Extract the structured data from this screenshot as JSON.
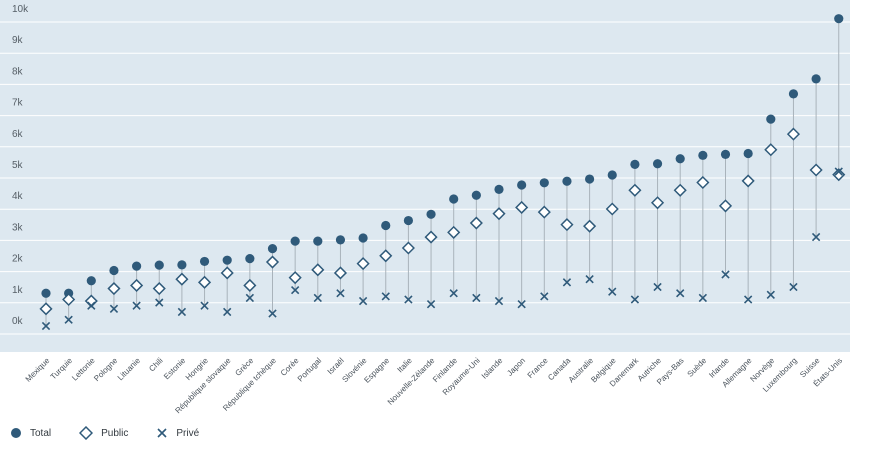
{
  "chart_data": {
    "type": "scatter",
    "ylim": [
      -900,
      10000
    ],
    "yticks": [
      0,
      1000,
      2000,
      3000,
      4000,
      5000,
      6000,
      7000,
      8000,
      9000,
      10000
    ],
    "ytick_labels": [
      "0k",
      "1k",
      "2k",
      "3k",
      "4k",
      "5k",
      "6k",
      "7k",
      "8k",
      "9k",
      "10k"
    ],
    "categories": [
      "Mexique",
      "Turquie",
      "Lettonie",
      "Pologne",
      "Lituanie",
      "Chili",
      "Estonie",
      "Hongrie",
      "République slovaque",
      "Grèce",
      "République tchèque",
      "Corée",
      "Portugal",
      "Israël",
      "Slovénie",
      "Espagne",
      "Italie",
      "Nouvelle-Zélande",
      "Finlande",
      "Royaume-Uni",
      "Islande",
      "Japon",
      "France",
      "Canada",
      "Australie",
      "Belgique",
      "Danemark",
      "Autriche",
      "Pays-Bas",
      "Suède",
      "Irlande",
      "Allemagne",
      "Norvège",
      "Luxembourg",
      "Suisse",
      "États-Unis"
    ],
    "series": [
      {
        "name": "Total",
        "marker": "circle",
        "values": [
          1050,
          1050,
          1450,
          1780,
          1920,
          1950,
          1960,
          2070,
          2110,
          2160,
          2480,
          2720,
          2720,
          2760,
          2820,
          3220,
          3380,
          3580,
          4070,
          4190,
          4380,
          4520,
          4590,
          4640,
          4710,
          4840,
          5180,
          5200,
          5360,
          5470,
          5500,
          5530,
          6630,
          7440,
          7920,
          9850
        ]
      },
      {
        "name": "Public",
        "marker": "diamond",
        "values": [
          550,
          850,
          800,
          1200,
          1300,
          1200,
          1500,
          1400,
          1700,
          1300,
          2050,
          1550,
          1800,
          1700,
          2000,
          2250,
          2500,
          2850,
          3000,
          3300,
          3600,
          3800,
          3650,
          3250,
          3200,
          3750,
          4350,
          3950,
          4350,
          4600,
          3850,
          4650,
          5650,
          6150,
          5000,
          4850
        ]
      },
      {
        "name": "Privé",
        "marker": "x",
        "values": [
          0,
          200,
          650,
          550,
          650,
          750,
          450,
          650,
          450,
          900,
          400,
          1150,
          900,
          1050,
          800,
          950,
          850,
          700,
          1050,
          900,
          800,
          700,
          950,
          1400,
          1500,
          1100,
          850,
          1250,
          1050,
          900,
          1650,
          850,
          1000,
          1250,
          2850,
          4950
        ]
      }
    ],
    "legend": [
      {
        "label": "Total",
        "marker": "circle"
      },
      {
        "label": "Public",
        "marker": "diamond"
      },
      {
        "label": "Privé",
        "marker": "x"
      }
    ]
  },
  "colors": {
    "plot_background": "#dde8f0",
    "gridline": "#ffffff",
    "marker": "#2f5a7a",
    "stem": "#a9b3bb"
  }
}
